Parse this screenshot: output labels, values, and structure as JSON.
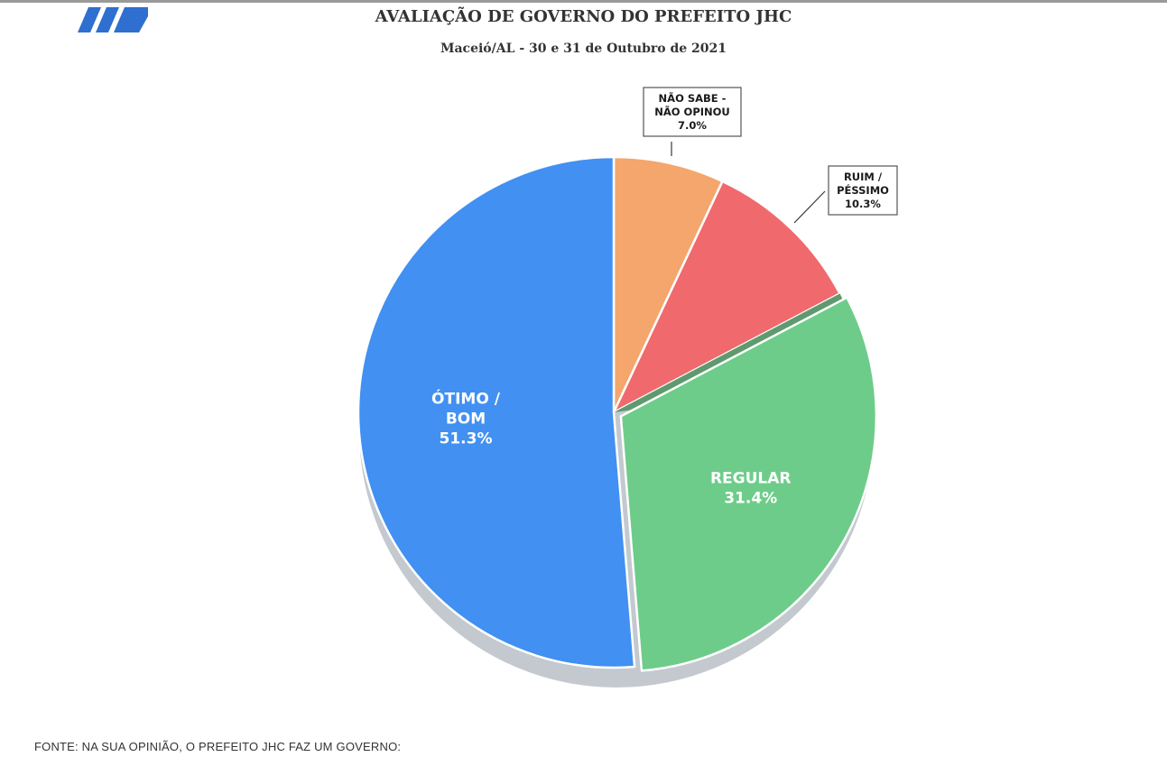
{
  "header": {
    "title": "AVALIAÇÃO DE GOVERNO DO PREFEITO JHC",
    "subtitle": "Maceió/AL - 30 e 31 de Outubro de 2021"
  },
  "footer": {
    "source": "FONTE: NA SUA OPINIÃO, O PREFEITO JHC FAZ UM GOVERNO:"
  },
  "chart_data": {
    "type": "pie",
    "start_angle_deg": 0,
    "direction": "clockwise",
    "exploded_slice": "REGULAR",
    "slices": [
      {
        "label_lines": [
          "NÃO SABE  -",
          "NÃO OPINOU"
        ],
        "value": 7.0,
        "value_label": "7.0%",
        "color": "#f4a66c",
        "label_style": "callout"
      },
      {
        "label_lines": [
          "RUIM /",
          "PÉSSIMO"
        ],
        "value": 10.3,
        "value_label": "10.3%",
        "color": "#f0696d",
        "label_style": "callout"
      },
      {
        "label_lines": [
          "REGULAR"
        ],
        "value": 31.4,
        "value_label": "31.4%",
        "color": "#6ecc8a",
        "label_style": "inside"
      },
      {
        "label_lines": [
          "ÓTIMO /",
          "BOM"
        ],
        "value": 51.3,
        "value_label": "51.3%",
        "color": "#4190f2",
        "label_style": "inside"
      }
    ]
  }
}
